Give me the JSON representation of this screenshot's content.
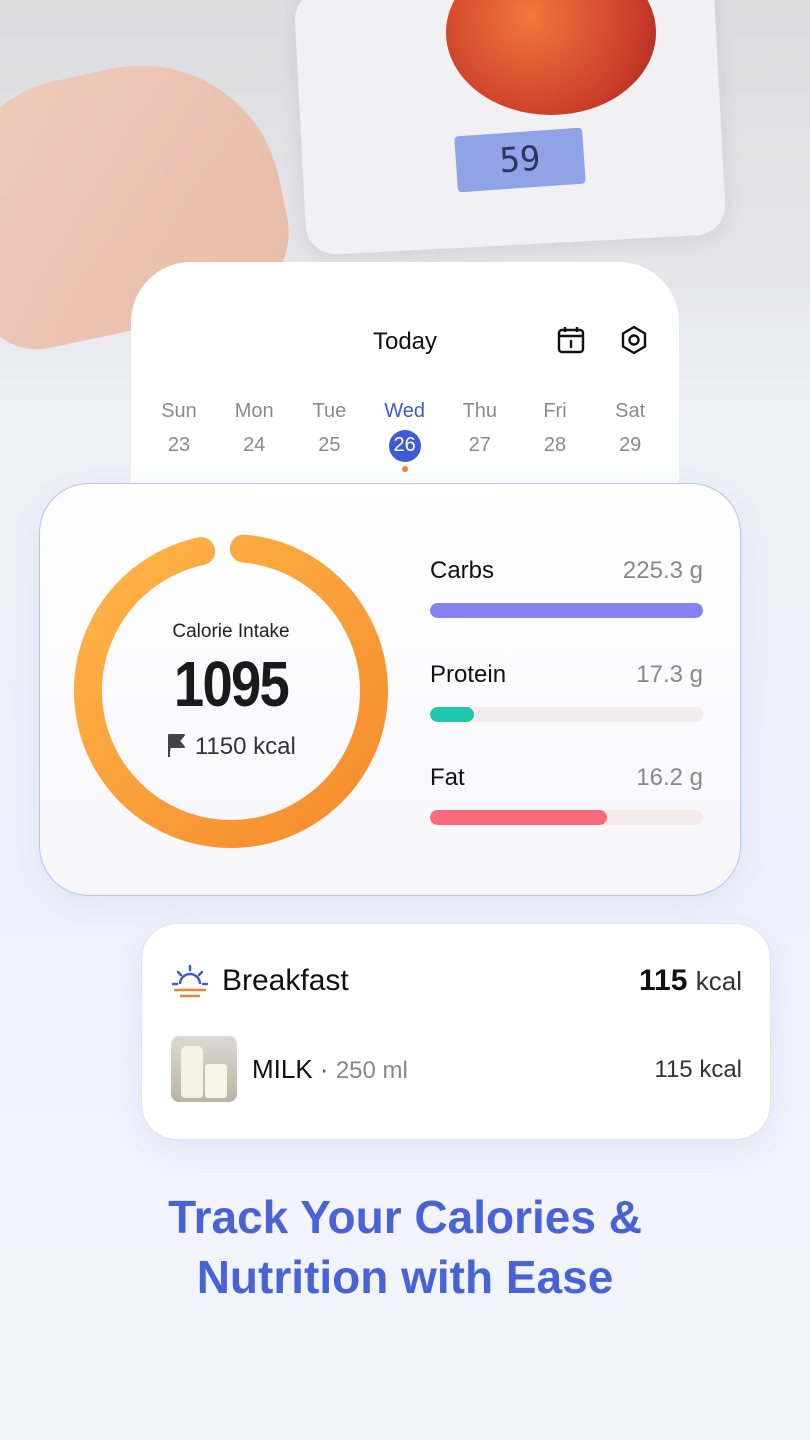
{
  "photo": {
    "scale_reading": "59"
  },
  "calendar": {
    "title": "Today",
    "days": [
      {
        "name": "Sun",
        "date": "23"
      },
      {
        "name": "Mon",
        "date": "24"
      },
      {
        "name": "Tue",
        "date": "25"
      },
      {
        "name": "Wed",
        "date": "26"
      },
      {
        "name": "Thu",
        "date": "27"
      },
      {
        "name": "Fri",
        "date": "28"
      },
      {
        "name": "Sat",
        "date": "29"
      }
    ],
    "selected": 3
  },
  "calorie": {
    "label": "Calorie Intake",
    "intake": 1095,
    "goal": {
      "value": 1150,
      "unit": "kcal"
    }
  },
  "macros": [
    {
      "name": "Carbs",
      "amount": "225.3 g",
      "fill_percent": 100,
      "color": "#8482f0"
    },
    {
      "name": "Protein",
      "amount": "17.3 g",
      "fill_percent": 16,
      "color": "#1fc7b0"
    },
    {
      "name": "Fat",
      "amount": "16.2 g",
      "fill_percent": 65,
      "color": "#f96b7c"
    }
  ],
  "meal": {
    "name": "Breakfast",
    "total": {
      "value": "115",
      "unit": "kcal"
    },
    "items": [
      {
        "name": "MILK",
        "portion": "250 ml",
        "calories": "115 kcal"
      }
    ]
  },
  "headline": {
    "line1": "Track Your Calories &",
    "line2": "Nutrition with Ease"
  }
}
